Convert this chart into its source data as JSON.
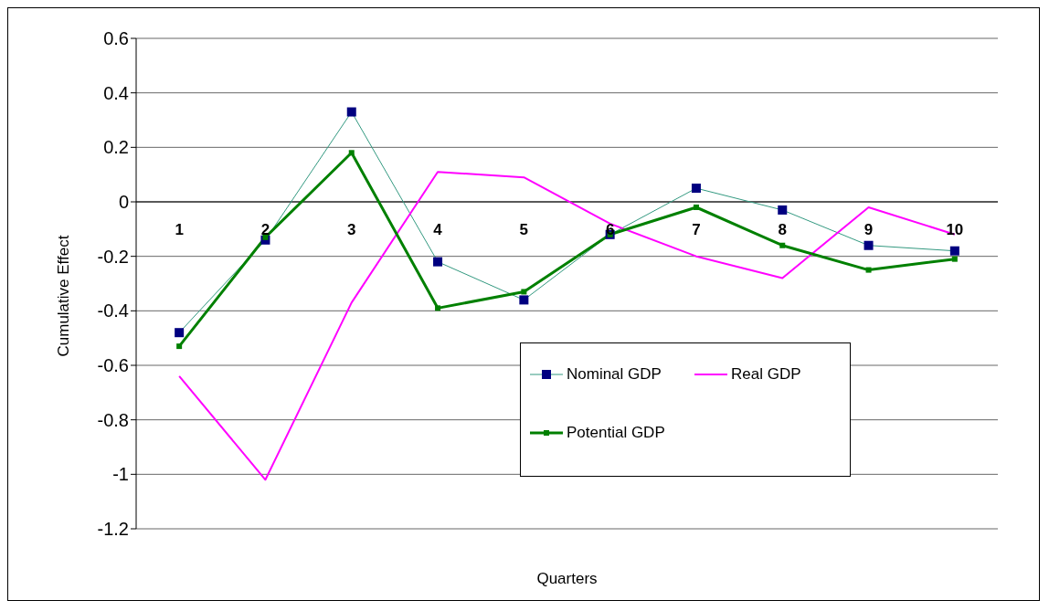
{
  "chart_data": {
    "type": "line",
    "xlabel": "Quarters",
    "ylabel": "Cumulative Effect",
    "categories": [
      "1",
      "2",
      "3",
      "4",
      "5",
      "6",
      "7",
      "8",
      "9",
      "10"
    ],
    "ylim": [
      -1.2,
      0.6
    ],
    "yticks": [
      -1.2,
      -1,
      -0.8,
      -0.6,
      -0.4,
      -0.2,
      0,
      0.2,
      0.4,
      0.6
    ],
    "grid": "y",
    "legend": "bottom right",
    "series": [
      {
        "name": "Nominal GDP",
        "color": "#339980",
        "marker": "square",
        "values": [
          -0.48,
          -0.14,
          0.33,
          -0.22,
          -0.36,
          -0.12,
          0.05,
          -0.03,
          -0.16,
          -0.18
        ]
      },
      {
        "name": "Real GDP",
        "color": "#ff00ff",
        "marker": "none",
        "values": [
          -0.64,
          -1.02,
          -0.37,
          0.11,
          0.09,
          -0.08,
          -0.2,
          -0.28,
          -0.02,
          -0.12
        ]
      },
      {
        "name": "Potential GDP",
        "color": "#008000",
        "marker": "square",
        "values": [
          -0.53,
          -0.13,
          0.18,
          -0.39,
          -0.33,
          -0.12,
          -0.02,
          -0.16,
          -0.25,
          -0.21
        ]
      }
    ]
  }
}
